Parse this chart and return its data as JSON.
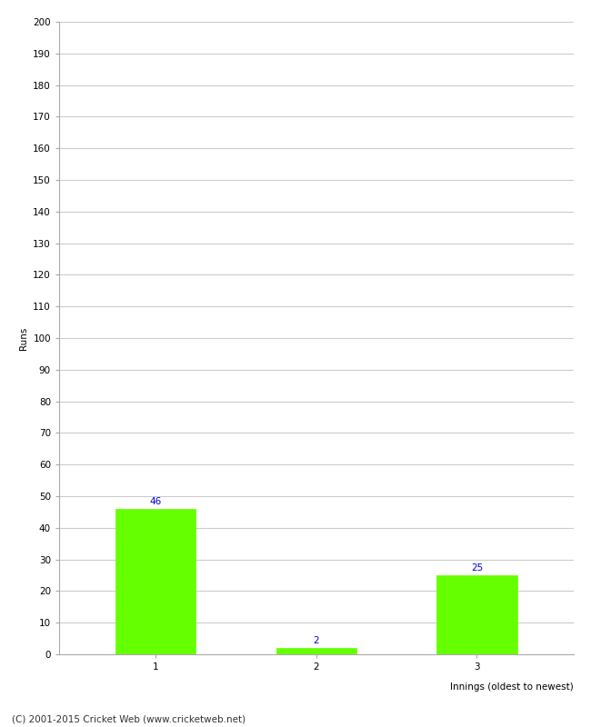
{
  "categories": [
    "1",
    "2",
    "3"
  ],
  "values": [
    46,
    2,
    25
  ],
  "bar_color": "#66ff00",
  "bar_edge_color": "#66ff00",
  "xlabel": "Innings (oldest to newest)",
  "ylabel": "Runs",
  "ylim": [
    0,
    200
  ],
  "yticks": [
    0,
    10,
    20,
    30,
    40,
    50,
    60,
    70,
    80,
    90,
    100,
    110,
    120,
    130,
    140,
    150,
    160,
    170,
    180,
    190,
    200
  ],
  "label_color": "#0000cc",
  "label_fontsize": 7.5,
  "axis_label_fontsize": 7.5,
  "tick_fontsize": 7.5,
  "footer_text": "(C) 2001-2015 Cricket Web (www.cricketweb.net)",
  "footer_fontsize": 7.5,
  "background_color": "#ffffff",
  "grid_color": "#cccccc",
  "bar_width": 0.5
}
